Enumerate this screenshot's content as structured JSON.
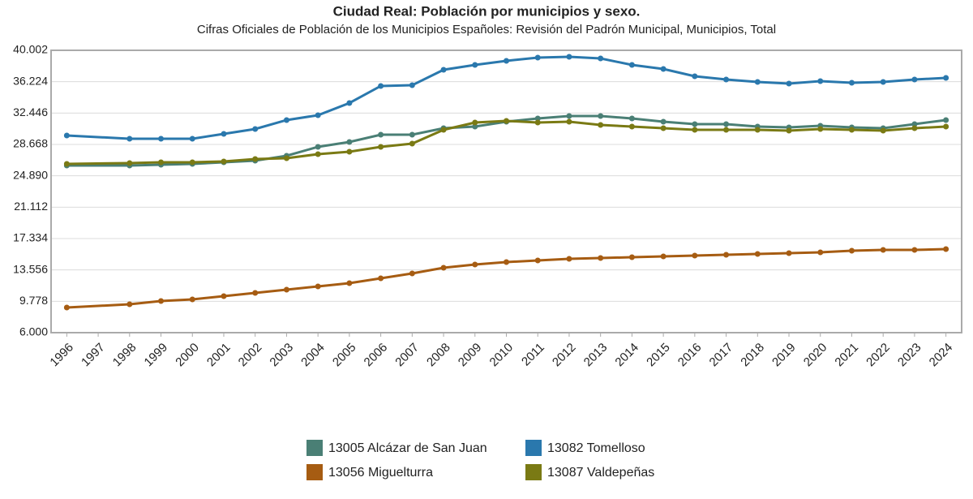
{
  "chart_data": {
    "type": "line",
    "title": "Ciudad Real: Población por municipios y sexo.",
    "subtitle": "Cifras Oficiales de Población de los Municipios Españoles: Revisión del Padrón Municipal, Municipios, Total",
    "x": [
      1996,
      1998,
      1999,
      2000,
      2001,
      2002,
      2003,
      2004,
      2005,
      2006,
      2007,
      2008,
      2009,
      2010,
      2011,
      2012,
      2013,
      2014,
      2015,
      2016,
      2017,
      2018,
      2019,
      2020,
      2021,
      2022,
      2023,
      2024
    ],
    "xlim": [
      1995.5,
      2024.5
    ],
    "xticks": [
      1996,
      1997,
      1998,
      1999,
      2000,
      2001,
      2002,
      2003,
      2004,
      2005,
      2006,
      2007,
      2008,
      2009,
      2010,
      2011,
      2012,
      2013,
      2014,
      2015,
      2016,
      2017,
      2018,
      2019,
      2020,
      2021,
      2022,
      2023,
      2024
    ],
    "ylim": [
      6000,
      40002
    ],
    "yticks": [
      {
        "value": 6000,
        "label": "6.000"
      },
      {
        "value": 9778,
        "label": "9.778"
      },
      {
        "value": 13556,
        "label": "13.556"
      },
      {
        "value": 17334,
        "label": "17.334"
      },
      {
        "value": 21112,
        "label": "21.112"
      },
      {
        "value": 24890,
        "label": "24.890"
      },
      {
        "value": 28668,
        "label": "28.668"
      },
      {
        "value": 32446,
        "label": "32.446"
      },
      {
        "value": 36224,
        "label": "36.224"
      },
      {
        "value": 40002,
        "label": "40.002"
      }
    ],
    "grid": true,
    "legend": "bottom",
    "series": [
      {
        "name": "13005 Alcázar de San Juan",
        "color": "#4a7f75",
        "values": [
          26128,
          26128,
          26226,
          26324,
          26519,
          26715,
          27301,
          28376,
          28962,
          29841,
          29841,
          30623,
          30819,
          31405,
          31796,
          32089,
          32089,
          31796,
          31405,
          31112,
          31112,
          30819,
          30721,
          30917,
          30721,
          30623,
          31112,
          31600
        ]
      },
      {
        "name": "13082 Tomelloso",
        "color": "#2a78ad",
        "values": [
          29743,
          29352,
          29352,
          29352,
          29939,
          30525,
          31600,
          32186,
          33652,
          35704,
          35802,
          37658,
          38244,
          38733,
          39124,
          39221,
          39026,
          38244,
          37756,
          36877,
          36486,
          36193,
          35998,
          36291,
          36095,
          36193,
          36486,
          36682
        ]
      },
      {
        "name": "13056 Miguelturra",
        "color": "#a65c12",
        "values": [
          9029,
          9420,
          9811,
          10006,
          10397,
          10788,
          11179,
          11569,
          11960,
          12546,
          13133,
          13817,
          14208,
          14501,
          14696,
          14892,
          14989,
          15087,
          15185,
          15282,
          15380,
          15478,
          15576,
          15673,
          15869,
          15967,
          15967,
          16064
        ]
      },
      {
        "name": "13087 Valdepeñas",
        "color": "#7a7a14",
        "values": [
          26324,
          26422,
          26519,
          26519,
          26617,
          26910,
          27008,
          27496,
          27789,
          28376,
          28767,
          30428,
          31307,
          31503,
          31307,
          31405,
          31014,
          30819,
          30623,
          30428,
          30428,
          30428,
          30330,
          30526,
          30428,
          30330,
          30623,
          30819
        ]
      }
    ]
  }
}
